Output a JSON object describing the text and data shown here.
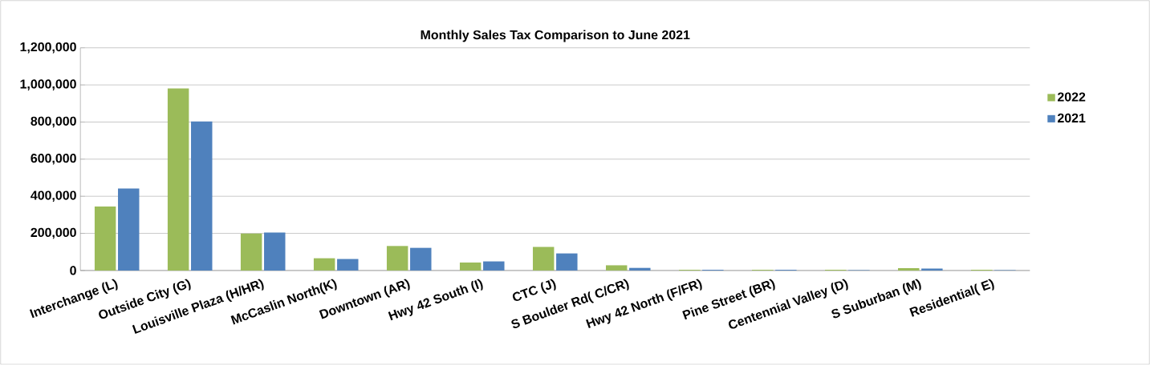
{
  "chart_data": {
    "type": "bar",
    "title": "Monthly Sales Tax Comparison to June 2021",
    "categories": [
      "Interchange (L)",
      "Outside City (G)",
      "Louisville Plaza (H/HR)",
      "McCaslin North(K)",
      "Downtown (AR)",
      "Hwy 42 South (I)",
      "CTC (J)",
      "S Boulder Rd( C/CR)",
      "Hwy 42 North (F/FR)",
      "Pine Street (BR)",
      "Centennial Valley (D)",
      "S Suburban (M)",
      "Residential( E)"
    ],
    "series": [
      {
        "name": "2022",
        "color": "#9bbb59",
        "values": [
          345000,
          981000,
          199000,
          66000,
          132000,
          43000,
          127000,
          28000,
          4000,
          4000,
          4000,
          13000,
          4000
        ]
      },
      {
        "name": "2021",
        "color": "#4f81bd",
        "values": [
          442000,
          803000,
          205000,
          62000,
          122000,
          49000,
          92000,
          14000,
          4000,
          4000,
          2000,
          11000,
          2000
        ]
      }
    ],
    "ylim": [
      0,
      1200000
    ],
    "yticks": [
      {
        "value": 0,
        "label": "0"
      },
      {
        "value": 200000,
        "label": "200,000"
      },
      {
        "value": 400000,
        "label": "400,000"
      },
      {
        "value": 600000,
        "label": "600,000"
      },
      {
        "value": 800000,
        "label": "800,000"
      },
      {
        "value": 1000000,
        "label": "1,000,000"
      },
      {
        "value": 1200000,
        "label": "1,200,000"
      }
    ],
    "grid": "y",
    "legend": "right"
  }
}
